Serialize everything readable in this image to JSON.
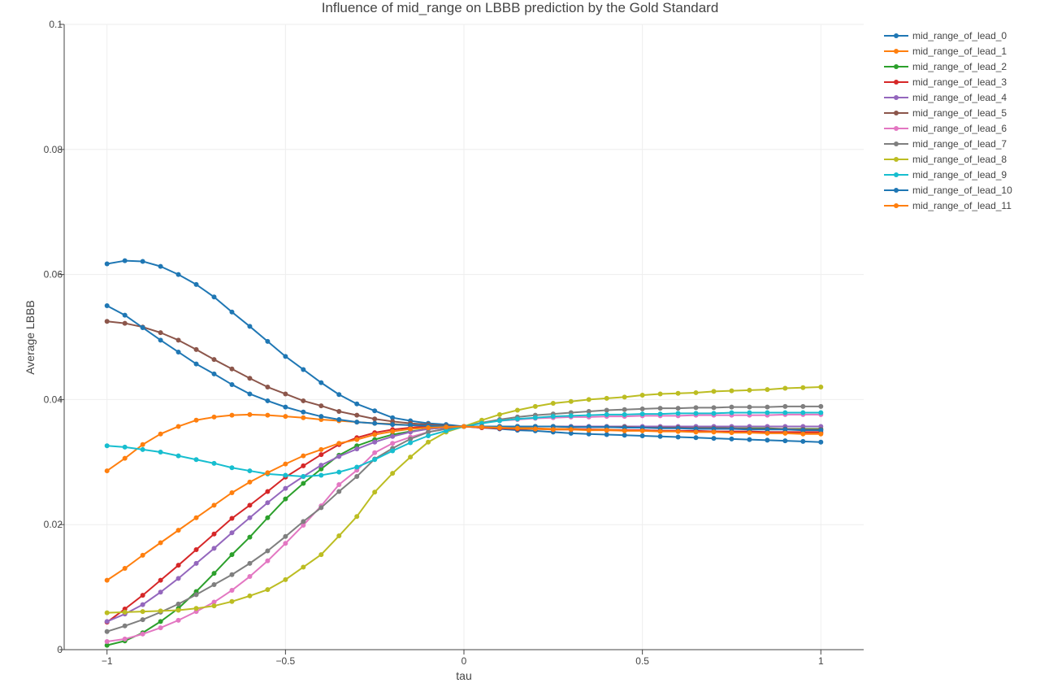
{
  "chart_data": {
    "type": "line",
    "title": "Influence of mid_range on LBBB prediction by the Gold Standard",
    "xlabel": "tau",
    "ylabel": "Average LBBB",
    "xlim": [
      -1.12,
      1.12
    ],
    "ylim": [
      0,
      0.1
    ],
    "x_ticks": [
      -1,
      -0.5,
      0,
      0.5,
      1
    ],
    "x_tick_labels": [
      "−1",
      "−0.5",
      "0",
      "0.5",
      "1"
    ],
    "y_ticks": [
      0,
      0.02,
      0.04,
      0.06,
      0.08,
      0.1
    ],
    "y_tick_labels": [
      "0",
      "0.02",
      "0.04",
      "0.06",
      "0.08",
      "0.1"
    ],
    "grid": true,
    "legend_position": "top-right",
    "x": [
      -1,
      -0.95,
      -0.9,
      -0.85,
      -0.8,
      -0.75,
      -0.7,
      -0.65,
      -0.6,
      -0.55,
      -0.5,
      -0.45,
      -0.4,
      -0.35,
      -0.3,
      -0.25,
      -0.2,
      -0.15,
      -0.1,
      -0.05,
      0,
      0.05,
      0.1,
      0.15,
      0.2,
      0.25,
      0.3,
      0.35,
      0.4,
      0.45,
      0.5,
      0.55,
      0.6,
      0.65,
      0.7,
      0.75,
      0.8,
      0.85,
      0.9,
      0.95,
      1
    ],
    "series": [
      {
        "name": "mid_range_of_lead_0",
        "color": "#1f77b4",
        "values": [
          0.0617,
          0.0622,
          0.0621,
          0.0613,
          0.06,
          0.0584,
          0.0564,
          0.054,
          0.0517,
          0.0493,
          0.0469,
          0.0448,
          0.0427,
          0.0408,
          0.0393,
          0.0382,
          0.0371,
          0.0366,
          0.0362,
          0.036,
          0.0357,
          0.0355,
          0.0353,
          0.0351,
          0.035,
          0.0348,
          0.0346,
          0.0345,
          0.0344,
          0.0343,
          0.0342,
          0.0341,
          0.034,
          0.0339,
          0.0338,
          0.0337,
          0.0336,
          0.0335,
          0.0334,
          0.0333,
          0.0332
        ]
      },
      {
        "name": "mid_range_of_lead_1",
        "color": "#ff7f0e",
        "values": [
          0.0286,
          0.0306,
          0.0328,
          0.0345,
          0.0357,
          0.0367,
          0.0372,
          0.0375,
          0.0376,
          0.0375,
          0.0373,
          0.0371,
          0.0368,
          0.0366,
          0.0364,
          0.0362,
          0.0361,
          0.0359,
          0.0358,
          0.0357,
          0.0357,
          0.0356,
          0.0355,
          0.0355,
          0.0354,
          0.0353,
          0.0353,
          0.0352,
          0.0352,
          0.0351,
          0.0351,
          0.035,
          0.035,
          0.0349,
          0.0349,
          0.0348,
          0.0348,
          0.0347,
          0.0347,
          0.0346,
          0.0346
        ]
      },
      {
        "name": "mid_range_of_lead_2",
        "color": "#2ca02c",
        "values": [
          0.0007,
          0.0014,
          0.0027,
          0.0045,
          0.0066,
          0.0093,
          0.0122,
          0.0152,
          0.018,
          0.0211,
          0.0241,
          0.0266,
          0.0289,
          0.0311,
          0.0326,
          0.0336,
          0.0344,
          0.0349,
          0.0353,
          0.0355,
          0.0357,
          0.0357,
          0.0357,
          0.0357,
          0.0357,
          0.0357,
          0.0357,
          0.0357,
          0.0357,
          0.0357,
          0.0356,
          0.0356,
          0.0356,
          0.0355,
          0.0355,
          0.0354,
          0.0354,
          0.0354,
          0.0353,
          0.0353,
          0.0353
        ]
      },
      {
        "name": "mid_range_of_lead_3",
        "color": "#d62728",
        "values": [
          0.0044,
          0.0065,
          0.0087,
          0.0111,
          0.0135,
          0.016,
          0.0185,
          0.021,
          0.0231,
          0.0253,
          0.0276,
          0.0294,
          0.0312,
          0.0328,
          0.0339,
          0.0347,
          0.0352,
          0.0355,
          0.0357,
          0.0357,
          0.0357,
          0.0355,
          0.0354,
          0.0353,
          0.0353,
          0.0352,
          0.0352,
          0.0352,
          0.0351,
          0.0351,
          0.0351,
          0.035,
          0.035,
          0.035,
          0.0349,
          0.0349,
          0.0349,
          0.0348,
          0.0348,
          0.0348,
          0.0348
        ]
      },
      {
        "name": "mid_range_of_lead_4",
        "color": "#9467bd",
        "values": [
          0.0045,
          0.0057,
          0.0072,
          0.0092,
          0.0114,
          0.0138,
          0.0162,
          0.0187,
          0.0211,
          0.0235,
          0.0258,
          0.0277,
          0.0295,
          0.0309,
          0.0321,
          0.0332,
          0.0341,
          0.0348,
          0.0353,
          0.0355,
          0.0357,
          0.0357,
          0.0357,
          0.0357,
          0.0357,
          0.0357,
          0.0357,
          0.0357,
          0.0357,
          0.0357,
          0.0357,
          0.0357,
          0.0357,
          0.0357,
          0.0357,
          0.0357,
          0.0357,
          0.0357,
          0.0357,
          0.0357,
          0.0357
        ]
      },
      {
        "name": "mid_range_of_lead_5",
        "color": "#8c564b",
        "values": [
          0.0525,
          0.0522,
          0.0516,
          0.0507,
          0.0495,
          0.048,
          0.0464,
          0.0449,
          0.0434,
          0.042,
          0.0409,
          0.0398,
          0.039,
          0.0381,
          0.0375,
          0.0369,
          0.0365,
          0.0362,
          0.036,
          0.0358,
          0.0357,
          0.0357,
          0.0357,
          0.0357,
          0.0357,
          0.0357,
          0.0356,
          0.0356,
          0.0356,
          0.0356,
          0.0355,
          0.0355,
          0.0355,
          0.0354,
          0.0354,
          0.0354,
          0.0353,
          0.0353,
          0.0353,
          0.0352,
          0.0352
        ]
      },
      {
        "name": "mid_range_of_lead_6",
        "color": "#e377c2",
        "values": [
          0.0013,
          0.0017,
          0.0025,
          0.0035,
          0.0047,
          0.0061,
          0.0076,
          0.0095,
          0.0117,
          0.0142,
          0.017,
          0.0199,
          0.023,
          0.0264,
          0.0287,
          0.0315,
          0.033,
          0.034,
          0.0348,
          0.0353,
          0.0357,
          0.0363,
          0.0366,
          0.0368,
          0.037,
          0.0371,
          0.0372,
          0.0372,
          0.0373,
          0.0373,
          0.0374,
          0.0374,
          0.0374,
          0.0375,
          0.0375,
          0.0375,
          0.0375,
          0.0375,
          0.0376,
          0.0376,
          0.0376
        ]
      },
      {
        "name": "mid_range_of_lead_7",
        "color": "#7f7f7f",
        "values": [
          0.0029,
          0.0038,
          0.0048,
          0.006,
          0.0073,
          0.0088,
          0.0104,
          0.012,
          0.0138,
          0.0158,
          0.0181,
          0.0205,
          0.0227,
          0.0253,
          0.0277,
          0.0305,
          0.0322,
          0.0337,
          0.0348,
          0.0353,
          0.0357,
          0.0363,
          0.0368,
          0.0372,
          0.0375,
          0.0377,
          0.0379,
          0.0381,
          0.0383,
          0.0384,
          0.0385,
          0.0386,
          0.0386,
          0.0387,
          0.0387,
          0.0388,
          0.0388,
          0.0388,
          0.0389,
          0.0389,
          0.0389
        ]
      },
      {
        "name": "mid_range_of_lead_8",
        "color": "#bcbd22",
        "values": [
          0.0059,
          0.006,
          0.0061,
          0.0062,
          0.0063,
          0.0066,
          0.007,
          0.0077,
          0.0086,
          0.0096,
          0.0112,
          0.0132,
          0.0152,
          0.0182,
          0.0213,
          0.0252,
          0.0282,
          0.0308,
          0.0332,
          0.0348,
          0.0357,
          0.0367,
          0.0376,
          0.0383,
          0.0389,
          0.0394,
          0.0397,
          0.04,
          0.0402,
          0.0404,
          0.0407,
          0.0409,
          0.041,
          0.0411,
          0.0413,
          0.0414,
          0.0415,
          0.0416,
          0.0418,
          0.0419,
          0.042
        ]
      },
      {
        "name": "mid_range_of_lead_9",
        "color": "#17becf",
        "values": [
          0.0326,
          0.0324,
          0.032,
          0.0316,
          0.031,
          0.0304,
          0.0298,
          0.0291,
          0.0286,
          0.0281,
          0.0279,
          0.0277,
          0.0279,
          0.0284,
          0.0292,
          0.0304,
          0.0318,
          0.0331,
          0.0342,
          0.035,
          0.0357,
          0.0362,
          0.0366,
          0.0369,
          0.0371,
          0.0373,
          0.0374,
          0.0375,
          0.0376,
          0.0376,
          0.0377,
          0.0377,
          0.0378,
          0.0378,
          0.0378,
          0.0379,
          0.0379,
          0.0379,
          0.0379,
          0.0379,
          0.0379
        ]
      },
      {
        "name": "mid_range_of_lead_10",
        "color": "#1f77b4",
        "values": [
          0.055,
          0.0535,
          0.0515,
          0.0495,
          0.0476,
          0.0457,
          0.0441,
          0.0424,
          0.0409,
          0.0398,
          0.0388,
          0.038,
          0.0373,
          0.0368,
          0.0364,
          0.0362,
          0.036,
          0.0359,
          0.0358,
          0.0357,
          0.0357,
          0.0357,
          0.0357,
          0.0357,
          0.0357,
          0.0357,
          0.0356,
          0.0356,
          0.0356,
          0.0355,
          0.0355,
          0.0354,
          0.0354,
          0.0353,
          0.0353,
          0.0353,
          0.0352,
          0.0352,
          0.0352,
          0.0351,
          0.0351
        ]
      },
      {
        "name": "mid_range_of_lead_11",
        "color": "#ff7f0e",
        "values": [
          0.0111,
          0.013,
          0.0151,
          0.0171,
          0.0191,
          0.0211,
          0.0231,
          0.0251,
          0.0268,
          0.0283,
          0.0297,
          0.031,
          0.032,
          0.033,
          0.0336,
          0.0344,
          0.0349,
          0.0353,
          0.0355,
          0.0356,
          0.0357,
          0.0356,
          0.0355,
          0.0354,
          0.0353,
          0.0352,
          0.0352,
          0.0351,
          0.0351,
          0.035,
          0.035,
          0.0349,
          0.0349,
          0.0348,
          0.0348,
          0.0347,
          0.0347,
          0.0346,
          0.0346,
          0.0345,
          0.0345
        ]
      }
    ]
  }
}
